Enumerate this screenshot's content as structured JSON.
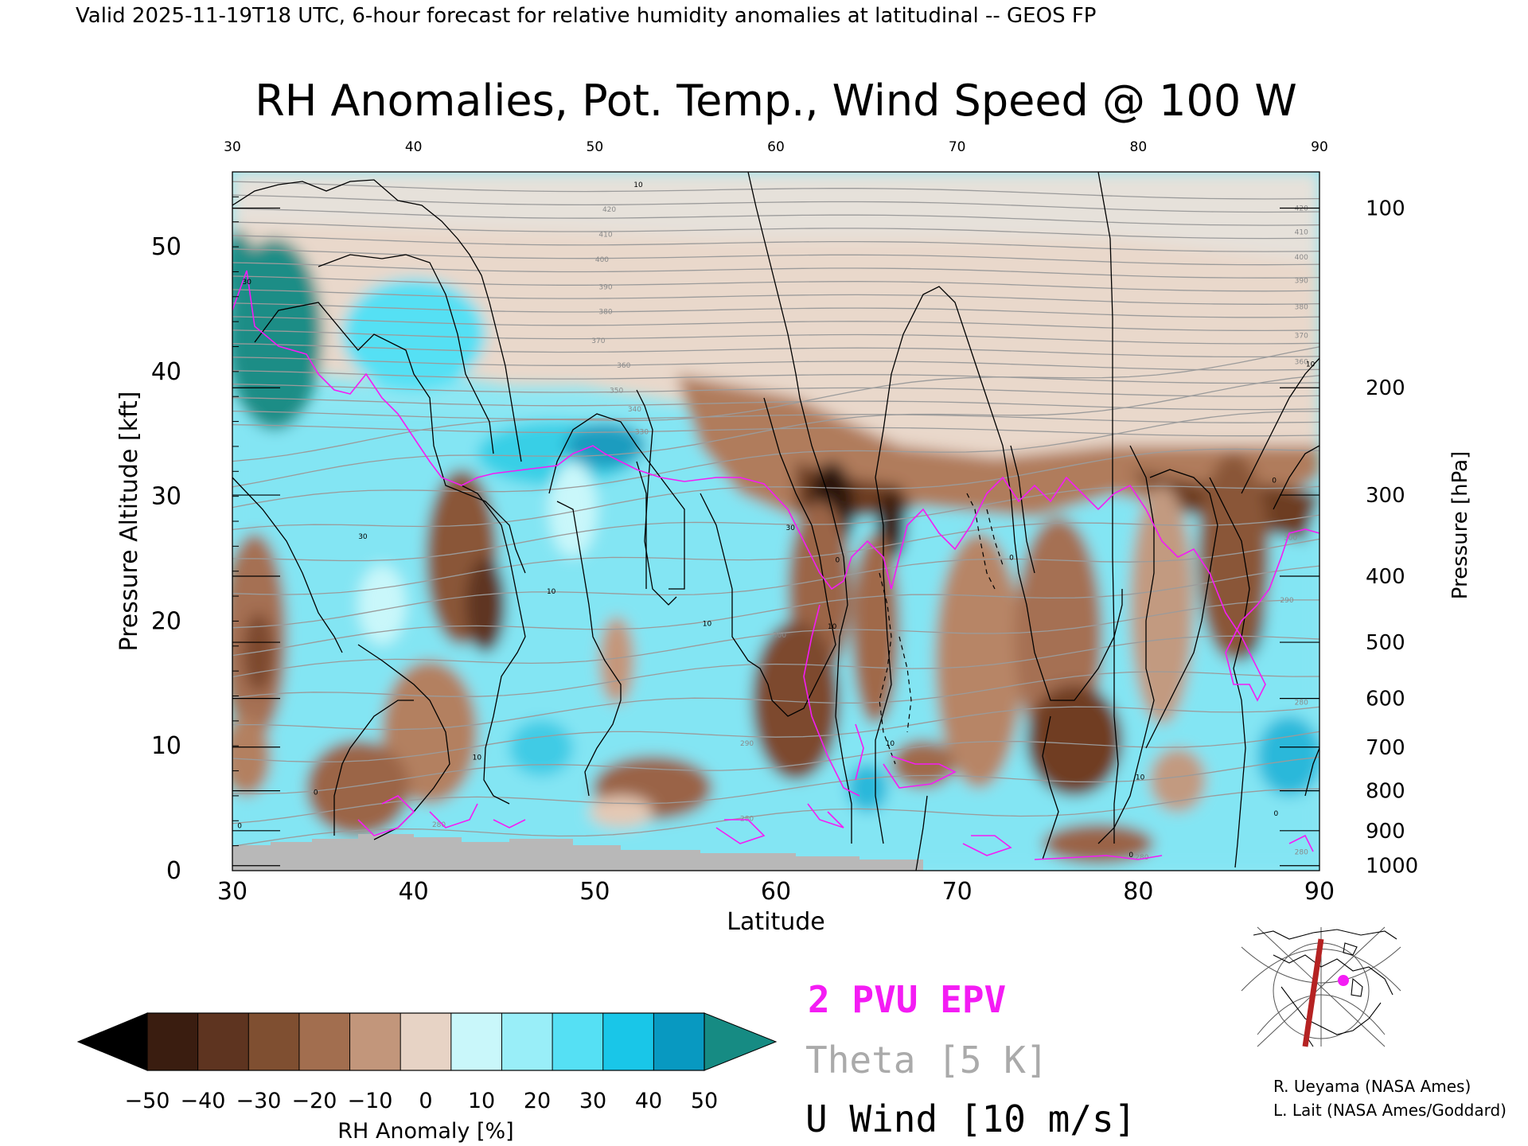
{
  "header": {
    "valid_line": "Valid 2025-11-19T18 UTC, 6-hour forecast for relative humidity anomalies at latitudinal -- GEOS FP"
  },
  "chart_data": {
    "type": "heatmap",
    "title": "RH Anomalies, Pot. Temp., Wind Speed @ 100 W",
    "xlabel": "Latitude",
    "ylabel": "Pressure Altitude [kft]",
    "y2label": "Pressure [hPa]",
    "xlim": [
      30,
      90
    ],
    "ylim": [
      0,
      56
    ],
    "x_ticks": [
      30,
      40,
      50,
      60,
      70,
      80,
      90
    ],
    "x_ticks_top": [
      30,
      40,
      50,
      60,
      70,
      80,
      90
    ],
    "y_ticks": [
      0,
      10,
      20,
      30,
      40,
      50
    ],
    "pressure_ticks": [
      {
        "hpa": "100",
        "kft": 53.1
      },
      {
        "hpa": "200",
        "kft": 38.7
      },
      {
        "hpa": "300",
        "kft": 30.1
      },
      {
        "hpa": "400",
        "kft": 23.6
      },
      {
        "hpa": "500",
        "kft": 18.3
      },
      {
        "hpa": "600",
        "kft": 13.8
      },
      {
        "hpa": "700",
        "kft": 9.9
      },
      {
        "hpa": "800",
        "kft": 6.4
      },
      {
        "hpa": "900",
        "kft": 3.2
      },
      {
        "hpa": "1000",
        "kft": 0.4
      }
    ],
    "theta_labels": [
      {
        "text": "420",
        "lat": 50.8,
        "kft": 52.8
      },
      {
        "text": "410",
        "lat": 50.6,
        "kft": 50.8
      },
      {
        "text": "400",
        "lat": 50.4,
        "kft": 48.8
      },
      {
        "text": "390",
        "lat": 50.6,
        "kft": 46.6
      },
      {
        "text": "380",
        "lat": 50.6,
        "kft": 44.6
      },
      {
        "text": "370",
        "lat": 50.2,
        "kft": 42.3
      },
      {
        "text": "360",
        "lat": 51.6,
        "kft": 40.3
      },
      {
        "text": "350",
        "lat": 51.2,
        "kft": 38.3
      },
      {
        "text": "340",
        "lat": 52.2,
        "kft": 36.8
      },
      {
        "text": "330",
        "lat": 52.6,
        "kft": 35.0
      },
      {
        "text": "300",
        "lat": 60.2,
        "kft": 18.7
      },
      {
        "text": "290",
        "lat": 58.4,
        "kft": 10.0
      },
      {
        "text": "280",
        "lat": 58.4,
        "kft": 4.0
      },
      {
        "text": "280",
        "lat": 41.4,
        "kft": 3.5
      },
      {
        "text": "280",
        "lat": 80.2,
        "kft": 0.9
      },
      {
        "text": "420",
        "lat": 89.0,
        "kft": 52.9
      },
      {
        "text": "410",
        "lat": 89.0,
        "kft": 51.0
      },
      {
        "text": "400",
        "lat": 89.0,
        "kft": 49.0
      },
      {
        "text": "390",
        "lat": 89.0,
        "kft": 47.1
      },
      {
        "text": "380",
        "lat": 89.0,
        "kft": 45.0
      },
      {
        "text": "370",
        "lat": 89.0,
        "kft": 42.7
      },
      {
        "text": "360",
        "lat": 89.0,
        "kft": 40.6
      },
      {
        "text": "300",
        "lat": 88.4,
        "kft": 26.5
      },
      {
        "text": "290",
        "lat": 88.2,
        "kft": 21.5
      },
      {
        "text": "280",
        "lat": 89.0,
        "kft": 13.3
      },
      {
        "text": "280",
        "lat": 89.0,
        "kft": 1.3
      }
    ],
    "wind_labels": [
      {
        "text": "10",
        "lat": 52.4,
        "kft": 54.8
      },
      {
        "text": "30",
        "lat": 30.8,
        "kft": 47.0
      },
      {
        "text": "30",
        "lat": 37.2,
        "kft": 26.6
      },
      {
        "text": "10",
        "lat": 47.6,
        "kft": 22.2
      },
      {
        "text": "10",
        "lat": 56.2,
        "kft": 19.6
      },
      {
        "text": "30",
        "lat": 60.8,
        "kft": 27.3
      },
      {
        "text": "0",
        "lat": 63.4,
        "kft": 24.7
      },
      {
        "text": "10",
        "lat": 63.1,
        "kft": 19.4
      },
      {
        "text": "10",
        "lat": 66.3,
        "kft": 10.0
      },
      {
        "text": "0",
        "lat": 73.0,
        "kft": 24.9
      },
      {
        "text": "10",
        "lat": 80.1,
        "kft": 7.3
      },
      {
        "text": "0",
        "lat": 79.6,
        "kft": 1.1
      },
      {
        "text": "10",
        "lat": 89.5,
        "kft": 40.4
      },
      {
        "text": "0",
        "lat": 87.5,
        "kft": 31.1
      },
      {
        "text": "10",
        "lat": 43.5,
        "kft": 8.9
      },
      {
        "text": "0",
        "lat": 34.6,
        "kft": 6.1
      },
      {
        "text": "0",
        "lat": 30.4,
        "kft": 3.4
      },
      {
        "text": "0",
        "lat": 87.6,
        "kft": 4.4
      }
    ],
    "colorbar": {
      "label": "RH Anomaly [%]",
      "ticks": [
        "−50",
        "−40",
        "−30",
        "−20",
        "−10",
        "0",
        "10",
        "20",
        "30",
        "40",
        "50"
      ],
      "colors": [
        "#3a1d10",
        "#5e3420",
        "#7f4f31",
        "#a26e4f",
        "#c2967b",
        "#e7d3c5",
        "#c9f7fa",
        "#99eef8",
        "#55e0f4",
        "#19c6e8",
        "#0899c1"
      ],
      "low_color": "#000000",
      "high_color": "#168b83"
    },
    "legend": {
      "epv": "2 PVU EPV",
      "theta": "Theta [5 K]",
      "wind": "U Wind [10 m/s]",
      "epv_color": "#f41cf4",
      "theta_color": "#aaaaaa",
      "wind_color": "#000000"
    }
  },
  "credits": {
    "line1": "R. Ueyama (NASA Ames)",
    "line2": "L. Lait (NASA Ames/Goddard)"
  }
}
